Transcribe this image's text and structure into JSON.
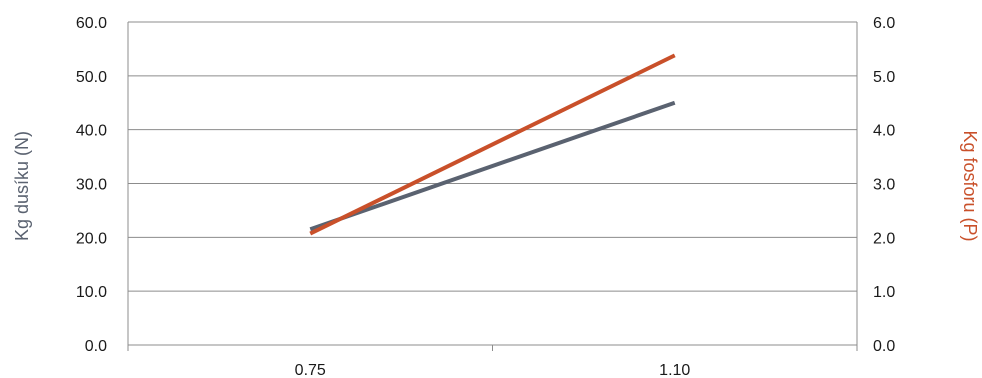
{
  "chart_data": {
    "type": "line",
    "categories": [
      "0.75",
      "1.10"
    ],
    "y_left": {
      "label": "Kg dusíku (N)",
      "range": [
        0,
        60
      ],
      "ticks": [
        "0.0",
        "10.0",
        "20.0",
        "30.0",
        "40.0",
        "50.0",
        "60.0"
      ],
      "color": "#5a6270"
    },
    "y_right": {
      "label": "Kg fosforu (P)",
      "range": [
        0,
        6
      ],
      "ticks": [
        "0.0",
        "1.0",
        "2.0",
        "3.0",
        "4.0",
        "5.0",
        "6.0"
      ],
      "color": "#c9502a"
    },
    "series": [
      {
        "axis": "left",
        "color": "#5a6270",
        "values": [
          21.5,
          45.0
        ]
      },
      {
        "axis": "right",
        "color": "#c9502a",
        "values": [
          2.07,
          5.38
        ]
      }
    ],
    "grid": true,
    "legend": "none"
  }
}
